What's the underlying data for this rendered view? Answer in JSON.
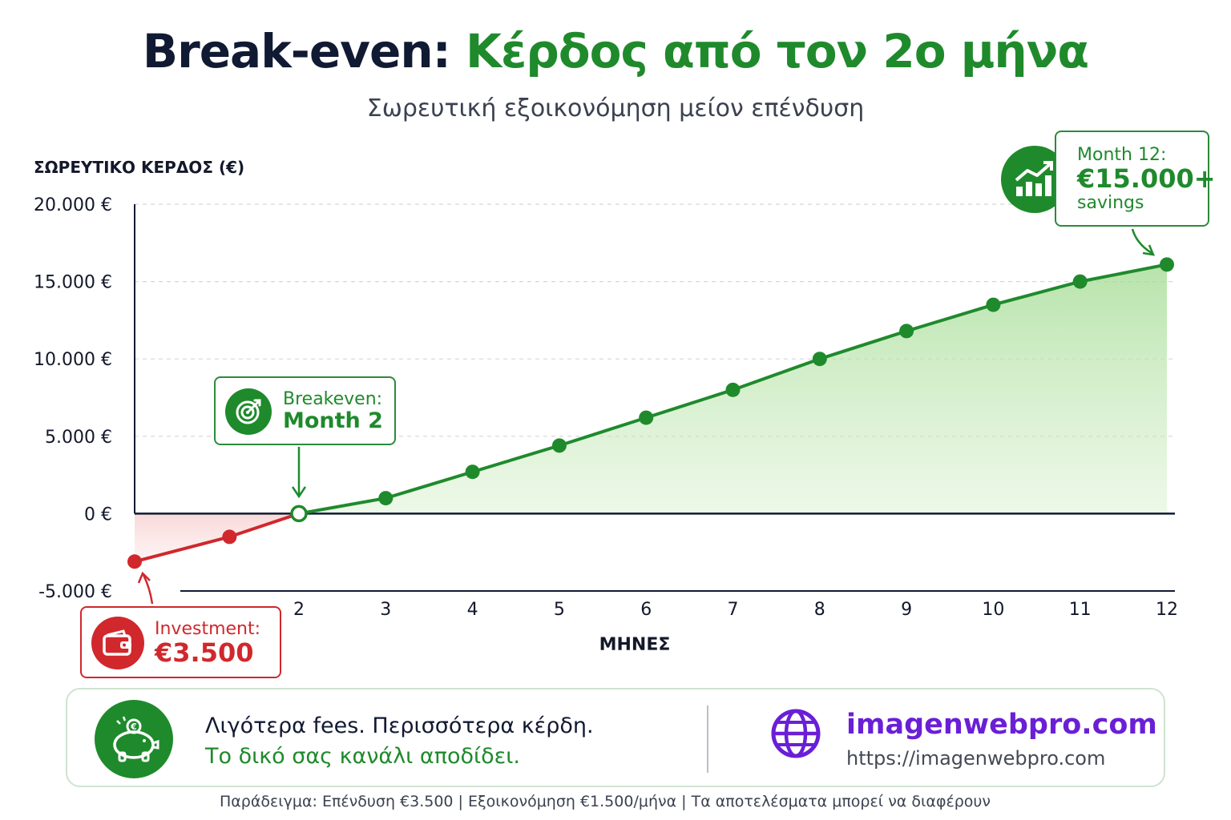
{
  "title_dark": "Break-even:",
  "title_green": "Κέρδος από τον 2ο μήνα",
  "subtitle": "Σωρευτική εξοικονόμηση μείον επένδυση",
  "chart_data": {
    "type": "line",
    "ylabel": "ΣΩΡΕΥΤΙΚΟ ΚΕΡΔΟΣ (€)",
    "xlabel": "ΜΗΝΕΣ",
    "ylim": [
      -5000,
      20000
    ],
    "xlim": [
      0.5,
      12
    ],
    "y_ticks": [
      {
        "value": 20000,
        "label": "20.000 €"
      },
      {
        "value": 15000,
        "label": "15.000 €"
      },
      {
        "value": 10000,
        "label": "10.000 €"
      },
      {
        "value": 5000,
        "label": "5.000 €"
      },
      {
        "value": 0,
        "label": "0 €"
      },
      {
        "value": -5000,
        "label": "-5.000 €"
      }
    ],
    "x_ticks": [
      2,
      3,
      4,
      5,
      6,
      7,
      8,
      9,
      10,
      11,
      12
    ],
    "grid": "horizontal-dashed",
    "x": [
      0.5,
      1.2,
      2,
      3,
      4,
      5,
      6,
      7,
      8,
      9,
      10,
      11,
      12
    ],
    "y": [
      -3100,
      -1500,
      0,
      1000,
      2700,
      4400,
      6200,
      8000,
      10000,
      11800,
      13500,
      15000,
      16100
    ],
    "colors": {
      "negative": "#d0282c",
      "positive": "#1f8a2c",
      "axis": "#111a33"
    }
  },
  "callouts": {
    "breakeven": {
      "label": "Breakeven:",
      "value": "Month 2",
      "icon": "target-icon"
    },
    "month12": {
      "label": "Month 12:",
      "value": "€15.000+",
      "sub": "savings",
      "icon": "growth-chart-icon"
    },
    "investment": {
      "label": "Investment:",
      "value": "€3.500",
      "icon": "wallet-icon"
    }
  },
  "footer": {
    "tagline1": "Λιγότερα fees. Περισσότερα κέρδη.",
    "tagline2": "Το δικό σας κανάλι αποδίδει.",
    "site": "imagenwebpro.com",
    "url": "https://imagenwebpro.com",
    "icons": [
      "piggy-bank-icon",
      "globe-icon"
    ]
  },
  "note": "Παράδειγμα: Επένδυση €3.500  |  Εξοικονόμηση €1.500/μήνα  |  Τα αποτελέσματα μπορεί να διαφέρουν"
}
